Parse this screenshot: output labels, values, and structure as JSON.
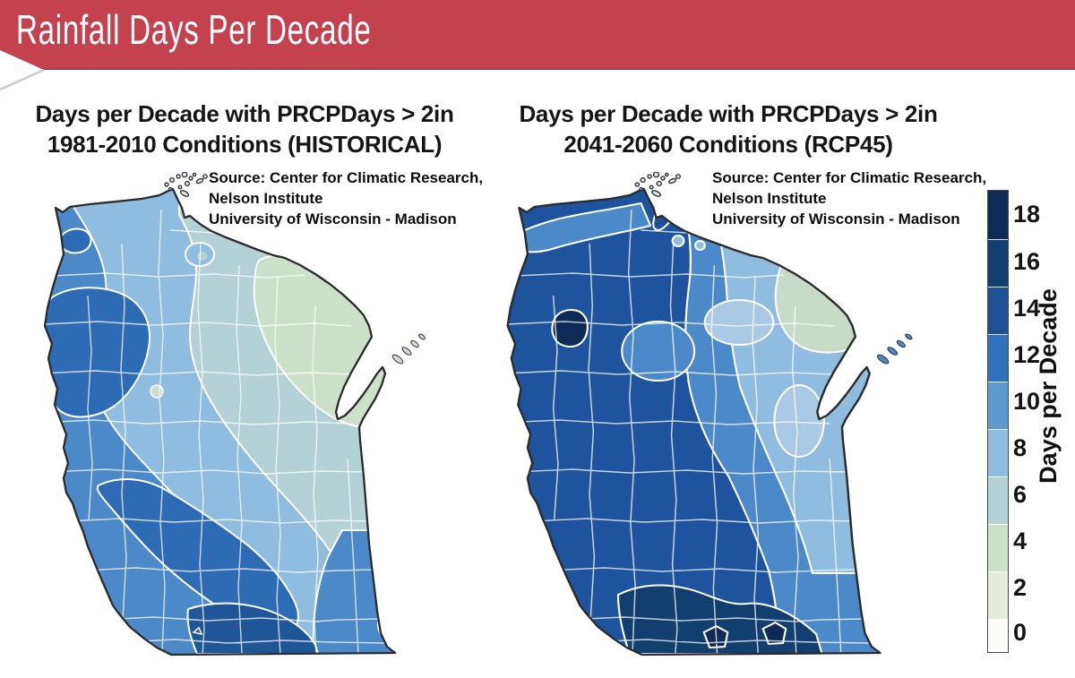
{
  "banner": {
    "title": "Rainfall Days Per Decade",
    "bg_color": "#c4424e"
  },
  "panels": [
    {
      "title_line1": "Days per Decade with PRCPDays > 2in",
      "title_line2": "1981-2010 Conditions (HISTORICAL)",
      "source_line1": "Source:  Center for Climatic Research,",
      "source_line2": "Nelson Institute",
      "source_line3": "University of Wisconsin - Madison"
    },
    {
      "title_line1": "Days per Decade with PRCPDays > 2in",
      "title_line2": "2041-2060 Conditions (RCP45)",
      "source_line1": "Source:  Center for Climatic Research,",
      "source_line2": "Nelson Institute",
      "source_line3": "University of Wisconsin - Madison"
    }
  ],
  "legend": {
    "axis_title": "Days per Decade",
    "blocks": [
      {
        "label": "18",
        "color": "#0d2b55"
      },
      {
        "label": "16",
        "color": "#133e70"
      },
      {
        "label": "14",
        "color": "#1c5194"
      },
      {
        "label": "12",
        "color": "#3071bd"
      },
      {
        "label": "10",
        "color": "#5e9ad2"
      },
      {
        "label": "8",
        "color": "#8fbcdf"
      },
      {
        "label": "6",
        "color": "#b2d2d6"
      },
      {
        "label": "4",
        "color": "#cce0ca"
      },
      {
        "label": "2",
        "color": "#e4ecdc"
      },
      {
        "label": "0",
        "color": "#fcfdf8"
      }
    ]
  },
  "chart_data": {
    "type": "heatmap",
    "title": "Rainfall Days Per Decade",
    "region": "Wisconsin (county outline contour maps)",
    "colorbar": {
      "label": "Days per Decade",
      "ticks_top_to_bottom": [
        18,
        16,
        14,
        12,
        10,
        8,
        6,
        4,
        2,
        0
      ],
      "colors_top_to_bottom": [
        "#0d2b55",
        "#133e70",
        "#1c5194",
        "#3071bd",
        "#5e9ad2",
        "#8fbcdf",
        "#b2d2d6",
        "#cce0ca",
        "#e4ecdc",
        "#fcfdf8"
      ]
    },
    "maps": [
      {
        "name": "Days per Decade with PRCPDays > 2in, 1981-2010 Conditions (HISTORICAL)",
        "values_days_per_decade": {
          "far_northeast": "6-8",
          "northeast_and_east": "8-10",
          "central_diagonal_band": "10-12",
          "west_and_southeast_corner": "12-14",
          "northwest_pocket_west_central_and_southwest_band": "14-16",
          "south_central_bottom": "14-16"
        }
      },
      {
        "name": "Days per Decade with PRCPDays > 2in, 2041-2060 Conditions (RCP45)",
        "values_days_per_decade": {
          "far_northeast": "8-10",
          "northeast_and_east_central": "10-12",
          "central": "12-14",
          "west_and_south": "14-16",
          "northwest_pocket": "18+",
          "southern_bottom_band": "16-18 with 18+ pockets"
        }
      }
    ]
  }
}
